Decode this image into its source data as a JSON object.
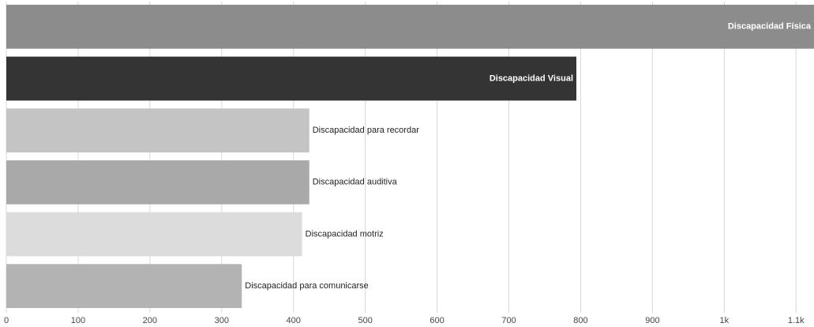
{
  "chart_data": {
    "type": "barh",
    "categories": [
      "Discapacidad Física",
      "Discapacidad Visual",
      "Discapacidad para recordar",
      "Discapacidad auditiva",
      "Discapacidad motriz",
      "Discapacidad para comunicarse"
    ],
    "values": [
      1125,
      794,
      422,
      422,
      412,
      328
    ],
    "colors": [
      "#8c8c8c",
      "#343434",
      "#c4c4c4",
      "#a9a9a9",
      "#dcdcdc",
      "#b3b3b3"
    ],
    "xlim": [
      0,
      1125
    ],
    "xticks": [
      0,
      100,
      200,
      300,
      400,
      500,
      600,
      700,
      800,
      900,
      {
        "value": 1000,
        "label": "1k"
      },
      {
        "value": 1100,
        "label": "1.1k"
      }
    ],
    "grid": true
  }
}
